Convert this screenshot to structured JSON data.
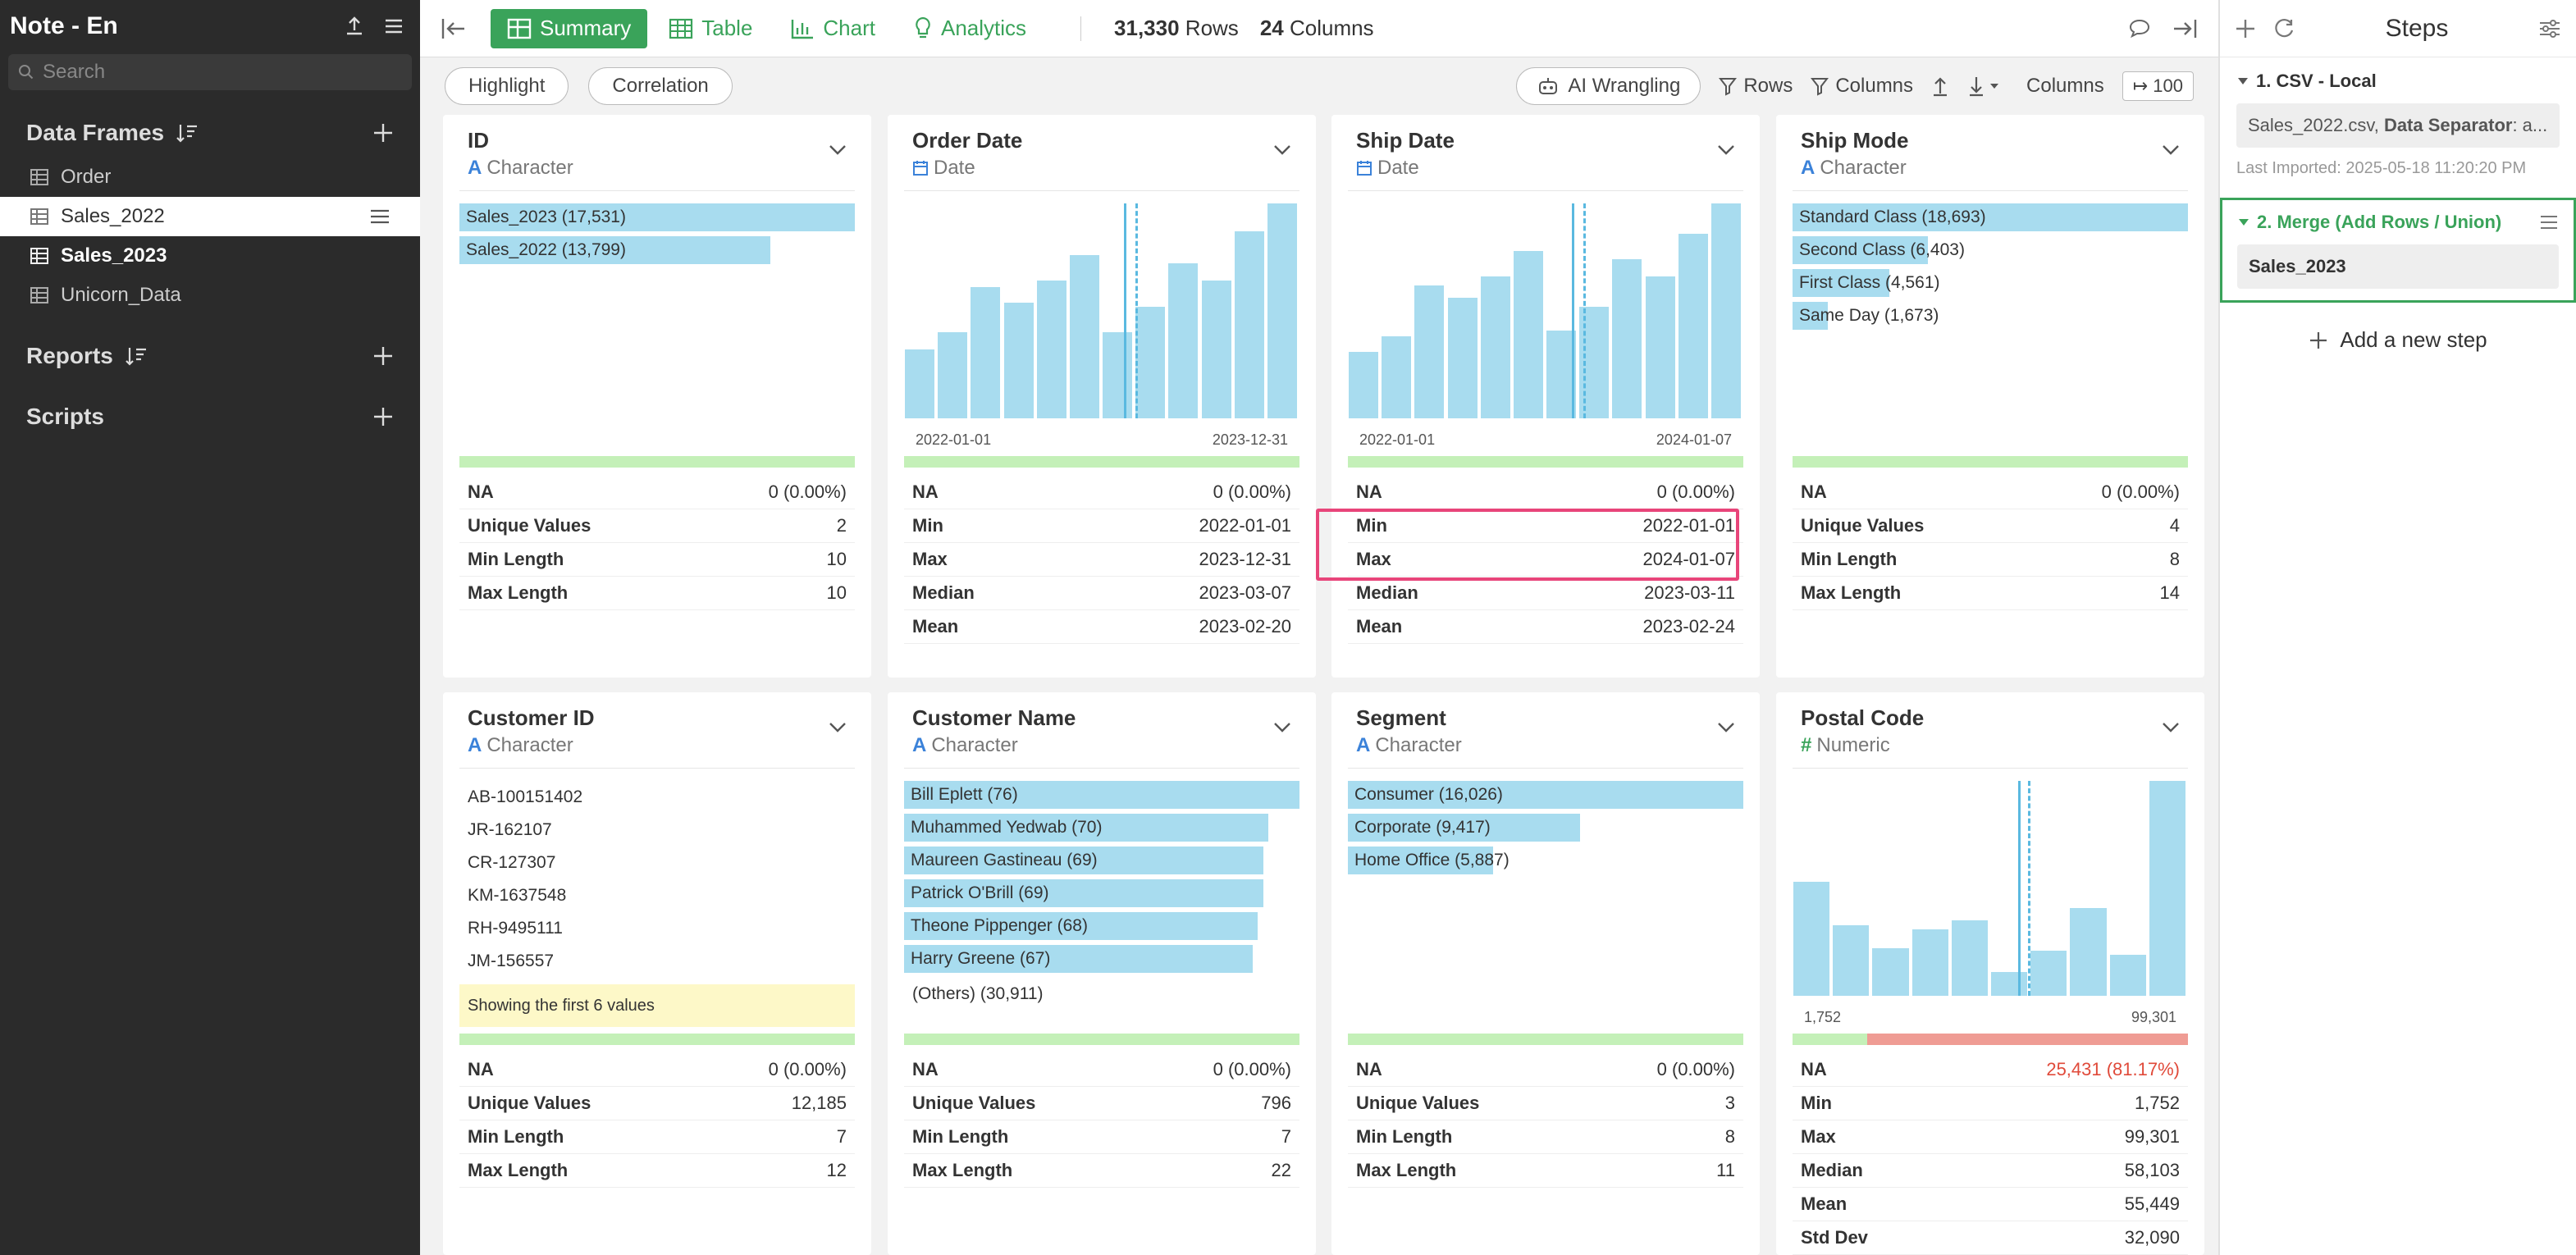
{
  "sidebar": {
    "title": "Note - En",
    "search_placeholder": "Search",
    "sections": {
      "data_frames": "Data Frames",
      "reports": "Reports",
      "scripts": "Scripts"
    },
    "items": [
      {
        "label": "Order"
      },
      {
        "label": "Sales_2022"
      },
      {
        "label": "Sales_2023"
      },
      {
        "label": "Unicorn_Data"
      }
    ]
  },
  "topbar": {
    "tabs": [
      {
        "label": "Summary"
      },
      {
        "label": "Table"
      },
      {
        "label": "Chart"
      },
      {
        "label": "Analytics"
      }
    ],
    "rows_count": "31,330",
    "rows_label": "Rows",
    "columns_count": "24",
    "columns_label": "Columns"
  },
  "subbar": {
    "highlight": "Highlight",
    "correlation": "Correlation",
    "ai_wrangling": "AI Wrangling",
    "rows": "Rows",
    "columns": "Columns",
    "columns_label": "Columns",
    "columns_value": "100"
  },
  "cards": [
    {
      "title": "ID",
      "type": "Character",
      "categories": [
        {
          "label": "Sales_2023 (17,531)",
          "value": 17531
        },
        {
          "label": "Sales_2022 (13,799)",
          "value": 13799
        }
      ],
      "na_fraction": 0,
      "stats": [
        {
          "k": "NA",
          "v": "0 (0.00%)"
        },
        {
          "k": "Unique Values",
          "v": "2"
        },
        {
          "k": "Min Length",
          "v": "10"
        },
        {
          "k": "Max Length",
          "v": "10"
        }
      ]
    },
    {
      "title": "Order Date",
      "type": "Date",
      "histogram": [
        0.32,
        0.4,
        0.61,
        0.54,
        0.64,
        0.76,
        0.4,
        0.52,
        0.72,
        0.64,
        0.87,
        1.0
      ],
      "median_pos": 0.555,
      "mean_pos": 0.585,
      "axis_min": "2022-01-01",
      "axis_max": "2023-12-31",
      "na_fraction": 0,
      "stats": [
        {
          "k": "NA",
          "v": "0 (0.00%)"
        },
        {
          "k": "Min",
          "v": "2022-01-01"
        },
        {
          "k": "Max",
          "v": "2023-12-31"
        },
        {
          "k": "Median",
          "v": "2023-03-07"
        },
        {
          "k": "Mean",
          "v": "2023-02-20"
        }
      ]
    },
    {
      "title": "Ship Date",
      "type": "Date",
      "histogram": [
        0.31,
        0.38,
        0.62,
        0.56,
        0.66,
        0.78,
        0.41,
        0.52,
        0.74,
        0.66,
        0.86,
        1.0
      ],
      "median_pos": 0.566,
      "mean_pos": 0.595,
      "axis_min": "2022-01-01",
      "axis_max": "2024-01-07",
      "na_fraction": 0,
      "stats": [
        {
          "k": "NA",
          "v": "0 (0.00%)"
        },
        {
          "k": "Min",
          "v": "2022-01-01"
        },
        {
          "k": "Max",
          "v": "2024-01-07"
        },
        {
          "k": "Median",
          "v": "2023-03-11"
        },
        {
          "k": "Mean",
          "v": "2023-02-24"
        }
      ]
    },
    {
      "title": "Ship Mode",
      "type": "Character",
      "categories": [
        {
          "label": "Standard Class (18,693)",
          "value": 18693
        },
        {
          "label": "Second Class (6,403)",
          "value": 6403
        },
        {
          "label": "First Class (4,561)",
          "value": 4561
        },
        {
          "label": "Same Day (1,673)",
          "value": 1673
        }
      ],
      "na_fraction": 0,
      "stats": [
        {
          "k": "NA",
          "v": "0 (0.00%)"
        },
        {
          "k": "Unique Values",
          "v": "4"
        },
        {
          "k": "Min Length",
          "v": "8"
        },
        {
          "k": "Max Length",
          "v": "14"
        }
      ]
    },
    {
      "title": "Customer ID",
      "type": "Character",
      "values_list": [
        "AB-100151402",
        "JR-162107",
        "CR-127307",
        "KM-1637548",
        "RH-9495111",
        "JM-156557"
      ],
      "note": "Showing the first 6 values",
      "na_fraction": 0,
      "stats": [
        {
          "k": "NA",
          "v": "0 (0.00%)"
        },
        {
          "k": "Unique Values",
          "v": "12,185"
        },
        {
          "k": "Min Length",
          "v": "7"
        },
        {
          "k": "Max Length",
          "v": "12"
        }
      ]
    },
    {
      "title": "Customer Name",
      "type": "Character",
      "categories": [
        {
          "label": "Bill Eplett (76)",
          "value": 76
        },
        {
          "label": "Muhammed Yedwab (70)",
          "value": 70
        },
        {
          "label": "Maureen Gastineau (69)",
          "value": 69
        },
        {
          "label": "Patrick O'Brill (69)",
          "value": 69
        },
        {
          "label": "Theone Pippenger (68)",
          "value": 68
        },
        {
          "label": "Harry Greene (67)",
          "value": 67
        }
      ],
      "others": "(Others) (30,911)",
      "na_fraction": 0,
      "stats": [
        {
          "k": "NA",
          "v": "0 (0.00%)"
        },
        {
          "k": "Unique Values",
          "v": "796"
        },
        {
          "k": "Min Length",
          "v": "7"
        },
        {
          "k": "Max Length",
          "v": "22"
        }
      ]
    },
    {
      "title": "Segment",
      "type": "Character",
      "categories": [
        {
          "label": "Consumer (16,026)",
          "value": 16026
        },
        {
          "label": "Corporate (9,417)",
          "value": 9417
        },
        {
          "label": "Home Office (5,887)",
          "value": 5887
        }
      ],
      "na_fraction": 0,
      "stats": [
        {
          "k": "NA",
          "v": "0 (0.00%)"
        },
        {
          "k": "Unique Values",
          "v": "3"
        },
        {
          "k": "Min Length",
          "v": "8"
        },
        {
          "k": "Max Length",
          "v": "11"
        }
      ]
    },
    {
      "title": "Postal Code",
      "type": "Numeric",
      "histogram": [
        0.53,
        0.33,
        0.22,
        0.31,
        0.35,
        0.11,
        0.21,
        0.41,
        0.19,
        1.0
      ],
      "median_pos": 0.57,
      "mean_pos": 0.595,
      "axis_min": "1,752",
      "axis_max": "99,301",
      "na_fraction": 0.8117,
      "stats": [
        {
          "k": "NA",
          "v": "25,431 (81.17%)",
          "red": true
        },
        {
          "k": "Min",
          "v": "1,752"
        },
        {
          "k": "Max",
          "v": "99,301"
        },
        {
          "k": "Median",
          "v": "58,103"
        },
        {
          "k": "Mean",
          "v": "55,449"
        },
        {
          "k": "Std Dev",
          "v": "32,090"
        }
      ]
    }
  ],
  "steps": {
    "title": "Steps",
    "step1_title": "1. CSV - Local",
    "step1_file": "Sales_2022.csv,",
    "step1_sep_label": "Data Separator",
    "step1_sep_value": ": a...",
    "step1_time": "Last Imported: 2025-05-18 11:20:20 PM",
    "step2_title": "2. Merge (Add Rows / Union)",
    "step2_value": "Sales_2023",
    "add_step": "Add a new step"
  }
}
